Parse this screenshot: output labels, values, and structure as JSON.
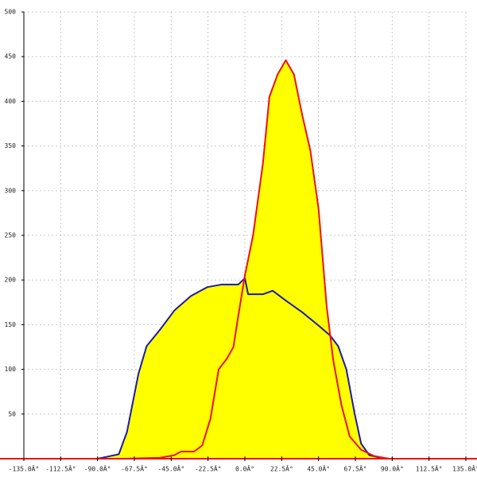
{
  "chart_data": {
    "type": "line",
    "fill_color": "#ffff00",
    "grid": true,
    "xlim": [
      -135,
      135
    ],
    "xticks": [
      {
        "value": -135,
        "label": "-135.0Â°"
      },
      {
        "value": -112.5,
        "label": "-112.5Â°"
      },
      {
        "value": -90,
        "label": "-90.0Â°"
      },
      {
        "value": -67.5,
        "label": "-67.5Â°"
      },
      {
        "value": -45,
        "label": "-45.0Â°"
      },
      {
        "value": -22.5,
        "label": "-22.5Â°"
      },
      {
        "value": 0,
        "label": "0.0Â°"
      },
      {
        "value": 22.5,
        "label": "22.5Â°"
      },
      {
        "value": 45,
        "label": "45.0Â°"
      },
      {
        "value": 67.5,
        "label": "67.5Â°"
      },
      {
        "value": 90,
        "label": "90.0Â°"
      },
      {
        "value": 112.5,
        "label": "112.5Â°"
      },
      {
        "value": 135,
        "label": "135.0Â°"
      }
    ],
    "ylim": [
      0,
      500
    ],
    "yticks": [
      50,
      100,
      150,
      200,
      250,
      300,
      350,
      400,
      450,
      500
    ],
    "series": [
      {
        "color": "#1a1aaa",
        "x": [
          -90,
          -77,
          -72,
          -65,
          -60,
          -52,
          -43,
          -33,
          -23,
          -14,
          -4,
          0,
          2,
          11,
          17,
          25,
          35,
          45,
          52,
          57,
          62,
          67,
          71,
          76,
          83,
          88
        ],
        "values": [
          0,
          5,
          30,
          95,
          126,
          144,
          166,
          182,
          192,
          195,
          195,
          202,
          184,
          184,
          188,
          177,
          164,
          149,
          138,
          126,
          100,
          51,
          17,
          4,
          1,
          0
        ]
      },
      {
        "color": "#ee1111",
        "x": [
          -74,
          -52,
          -43,
          -39,
          -31,
          -26,
          -21,
          -16,
          -11,
          -7,
          -4,
          0,
          5,
          11,
          15,
          20,
          25,
          30,
          35,
          40,
          45,
          50,
          54,
          59,
          64,
          71,
          79,
          88
        ],
        "values": [
          0,
          1,
          4,
          8,
          8,
          15,
          45,
          100,
          112,
          125,
          160,
          205,
          250,
          330,
          405,
          430,
          446,
          430,
          385,
          345,
          280,
          170,
          110,
          60,
          25,
          10,
          3,
          0
        ]
      }
    ]
  }
}
